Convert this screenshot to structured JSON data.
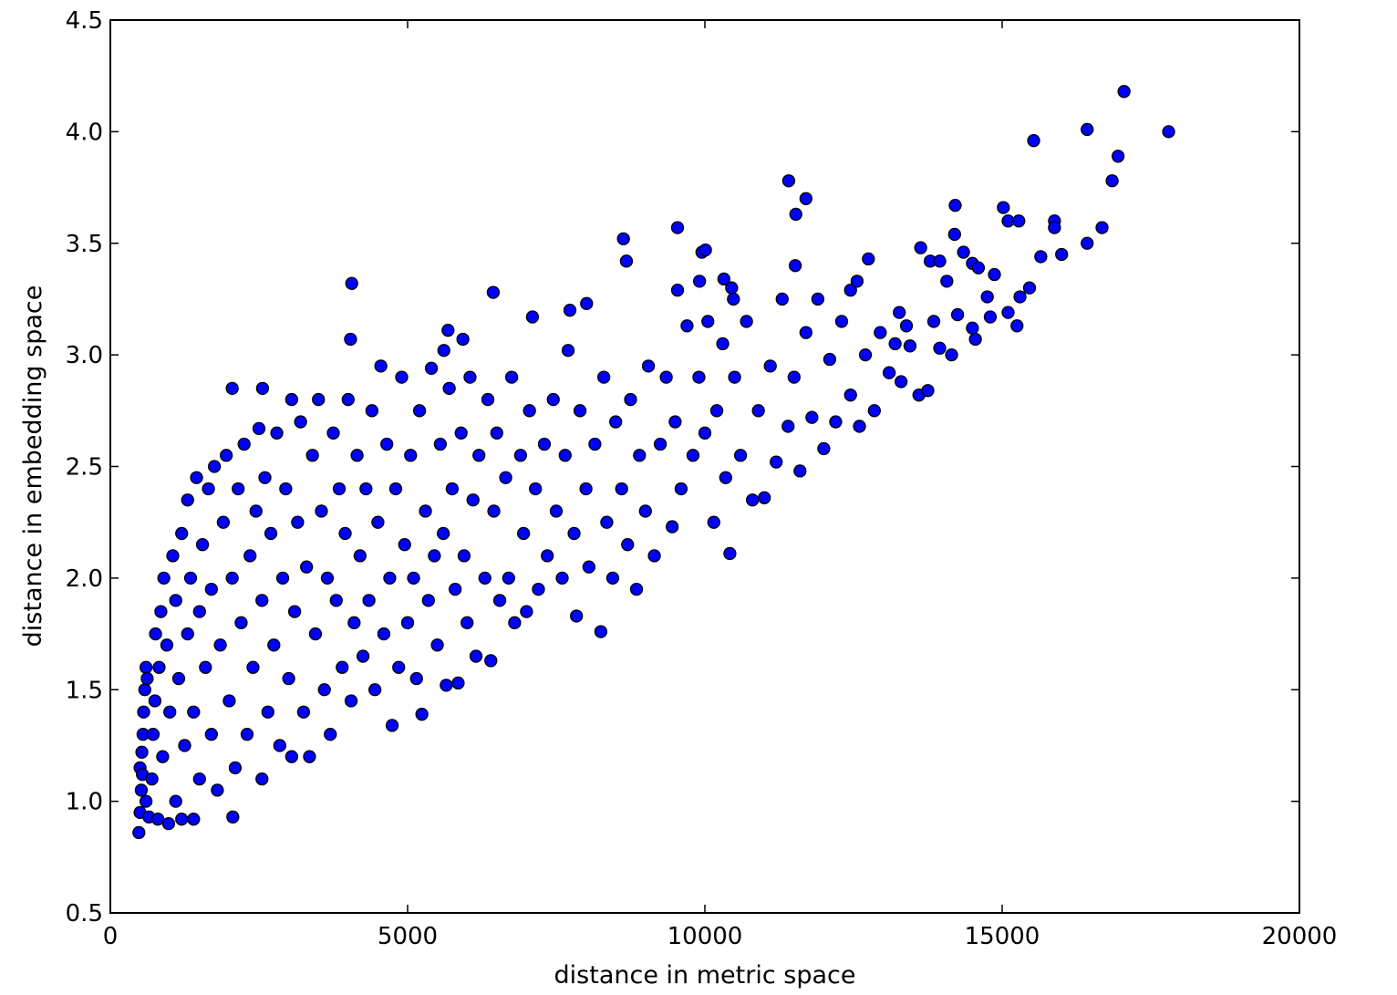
{
  "chart_data": {
    "type": "scatter",
    "title": "",
    "xlabel": "distance in metric space",
    "ylabel": "distance in embedding space",
    "xlim": [
      0,
      20000
    ],
    "ylim": [
      0.5,
      4.5
    ],
    "xticks": [
      "0",
      "5000",
      "10000",
      "15000",
      "20000"
    ],
    "yticks": [
      "0.5",
      "1.0",
      "1.5",
      "2.0",
      "2.5",
      "3.0",
      "3.5",
      "4.0",
      "4.5"
    ],
    "grid": false,
    "legend": "none",
    "marker_color": "#0000ff",
    "marker_edge_color": "#000000",
    "points": [
      [
        480,
        0.86
      ],
      [
        500,
        0.95
      ],
      [
        520,
        1.05
      ],
      [
        500,
        1.15
      ],
      [
        530,
        1.22
      ],
      [
        550,
        1.3
      ],
      [
        560,
        1.4
      ],
      [
        580,
        1.5
      ],
      [
        600,
        1.6
      ],
      [
        620,
        1.55
      ],
      [
        540,
        1.12
      ],
      [
        600,
        1.0
      ],
      [
        650,
        0.93
      ],
      [
        700,
        1.1
      ],
      [
        720,
        1.3
      ],
      [
        750,
        1.45
      ],
      [
        760,
        1.75
      ],
      [
        800,
        0.92
      ],
      [
        820,
        1.6
      ],
      [
        850,
        1.85
      ],
      [
        880,
        1.2
      ],
      [
        900,
        2.0
      ],
      [
        950,
        1.7
      ],
      [
        980,
        0.9
      ],
      [
        1000,
        1.4
      ],
      [
        1050,
        2.1
      ],
      [
        1100,
        1.0
      ],
      [
        1100,
        1.9
      ],
      [
        1150,
        1.55
      ],
      [
        1200,
        2.2
      ],
      [
        1200,
        0.92
      ],
      [
        1250,
        1.25
      ],
      [
        1300,
        2.35
      ],
      [
        1300,
        1.75
      ],
      [
        1350,
        2.0
      ],
      [
        1400,
        1.4
      ],
      [
        1400,
        0.92
      ],
      [
        1450,
        2.45
      ],
      [
        1500,
        1.1
      ],
      [
        1500,
        1.85
      ],
      [
        1550,
        2.15
      ],
      [
        1600,
        1.6
      ],
      [
        1650,
        2.4
      ],
      [
        1700,
        1.3
      ],
      [
        1700,
        1.95
      ],
      [
        1750,
        2.5
      ],
      [
        1800,
        1.05
      ],
      [
        1850,
        1.7
      ],
      [
        1900,
        2.25
      ],
      [
        1950,
        2.55
      ],
      [
        2000,
        1.45
      ],
      [
        2050,
        2.0
      ],
      [
        2060,
        0.93
      ],
      [
        2100,
        1.15
      ],
      [
        2150,
        2.4
      ],
      [
        2200,
        1.8
      ],
      [
        2250,
        2.6
      ],
      [
        2300,
        1.3
      ],
      [
        2350,
        2.1
      ],
      [
        2400,
        1.6
      ],
      [
        2450,
        2.3
      ],
      [
        2500,
        2.67
      ],
      [
        2550,
        1.1
      ],
      [
        2550,
        1.9
      ],
      [
        2600,
        2.45
      ],
      [
        2650,
        1.4
      ],
      [
        2700,
        2.2
      ],
      [
        2750,
        1.7
      ],
      [
        2800,
        2.65
      ],
      [
        2850,
        1.25
      ],
      [
        2900,
        2.0
      ],
      [
        2950,
        2.4
      ],
      [
        3000,
        1.55
      ],
      [
        3050,
        1.2
      ],
      [
        3050,
        2.8
      ],
      [
        3100,
        1.85
      ],
      [
        3150,
        2.25
      ],
      [
        3200,
        2.7
      ],
      [
        3250,
        1.4
      ],
      [
        3300,
        2.05
      ],
      [
        3350,
        1.2
      ],
      [
        3400,
        2.55
      ],
      [
        3450,
        1.75
      ],
      [
        3500,
        2.8
      ],
      [
        3550,
        2.3
      ],
      [
        3600,
        1.5
      ],
      [
        3650,
        2.0
      ],
      [
        3700,
        1.3
      ],
      [
        3750,
        2.65
      ],
      [
        3800,
        1.9
      ],
      [
        3850,
        2.4
      ],
      [
        3900,
        1.6
      ],
      [
        3950,
        2.2
      ],
      [
        4000,
        2.8
      ],
      [
        4050,
        1.45
      ],
      [
        4100,
        1.8
      ],
      [
        4150,
        2.55
      ],
      [
        4200,
        2.1
      ],
      [
        4250,
        1.65
      ],
      [
        4300,
        2.4
      ],
      [
        4350,
        1.9
      ],
      [
        4400,
        2.75
      ],
      [
        4450,
        1.5
      ],
      [
        4500,
        2.25
      ],
      [
        4550,
        2.95
      ],
      [
        4600,
        1.75
      ],
      [
        4650,
        2.6
      ],
      [
        4700,
        2.0
      ],
      [
        4740,
        1.34
      ],
      [
        4800,
        2.4
      ],
      [
        4850,
        1.6
      ],
      [
        4900,
        2.9
      ],
      [
        4950,
        2.15
      ],
      [
        5000,
        1.8
      ],
      [
        5050,
        2.55
      ],
      [
        5100,
        2.0
      ],
      [
        5150,
        1.55
      ],
      [
        5200,
        2.75
      ],
      [
        5240,
        1.39
      ],
      [
        5300,
        2.3
      ],
      [
        5350,
        1.9
      ],
      [
        5400,
        2.94
      ],
      [
        5450,
        2.1
      ],
      [
        5500,
        1.7
      ],
      [
        5550,
        2.6
      ],
      [
        5600,
        2.2
      ],
      [
        5650,
        1.52
      ],
      [
        5700,
        2.85
      ],
      [
        5750,
        2.4
      ],
      [
        5800,
        1.95
      ],
      [
        5850,
        1.53
      ],
      [
        5900,
        2.65
      ],
      [
        5950,
        2.1
      ],
      [
        6000,
        1.8
      ],
      [
        6050,
        2.9
      ],
      [
        6100,
        2.35
      ],
      [
        6150,
        1.65
      ],
      [
        6200,
        2.55
      ],
      [
        6300,
        2.0
      ],
      [
        6350,
        2.8
      ],
      [
        6400,
        1.63
      ],
      [
        6450,
        2.3
      ],
      [
        6500,
        2.65
      ],
      [
        6550,
        1.9
      ],
      [
        6650,
        2.45
      ],
      [
        6700,
        2.0
      ],
      [
        6750,
        2.9
      ],
      [
        6800,
        1.8
      ],
      [
        6900,
        2.55
      ],
      [
        6950,
        2.2
      ],
      [
        7000,
        1.85
      ],
      [
        7050,
        2.75
      ],
      [
        7150,
        2.4
      ],
      [
        7200,
        1.95
      ],
      [
        7300,
        2.6
      ],
      [
        7350,
        2.1
      ],
      [
        7450,
        2.8
      ],
      [
        7500,
        2.3
      ],
      [
        7600,
        2.0
      ],
      [
        7650,
        2.55
      ],
      [
        7700,
        3.02
      ],
      [
        7800,
        2.2
      ],
      [
        7840,
        1.83
      ],
      [
        7900,
        2.75
      ],
      [
        8000,
        2.4
      ],
      [
        8050,
        2.05
      ],
      [
        8150,
        2.6
      ],
      [
        8250,
        1.76
      ],
      [
        8300,
        2.9
      ],
      [
        8350,
        2.25
      ],
      [
        8450,
        2.0
      ],
      [
        8500,
        2.7
      ],
      [
        8600,
        2.4
      ],
      [
        8700,
        2.15
      ],
      [
        8750,
        2.8
      ],
      [
        8850,
        1.95
      ],
      [
        8900,
        2.55
      ],
      [
        9000,
        2.3
      ],
      [
        9050,
        2.95
      ],
      [
        9150,
        2.1
      ],
      [
        9250,
        2.6
      ],
      [
        9350,
        2.9
      ],
      [
        9450,
        2.23
      ],
      [
        9500,
        2.7
      ],
      [
        9600,
        2.4
      ],
      [
        9700,
        3.13
      ],
      [
        9800,
        2.55
      ],
      [
        9900,
        2.9
      ],
      [
        10000,
        2.65
      ],
      [
        10050,
        3.15
      ],
      [
        10150,
        2.25
      ],
      [
        10200,
        2.75
      ],
      [
        10300,
        3.05
      ],
      [
        10350,
        2.45
      ],
      [
        10420,
        2.11
      ],
      [
        10500,
        2.9
      ],
      [
        10600,
        2.55
      ],
      [
        10700,
        3.15
      ],
      [
        10800,
        2.35
      ],
      [
        10900,
        2.75
      ],
      [
        11000,
        2.36
      ],
      [
        11100,
        2.95
      ],
      [
        11200,
        2.52
      ],
      [
        11300,
        3.25
      ],
      [
        11400,
        2.68
      ],
      [
        11500,
        2.9
      ],
      [
        11600,
        2.48
      ],
      [
        11700,
        3.1
      ],
      [
        11800,
        2.72
      ],
      [
        11900,
        3.25
      ],
      [
        12000,
        2.58
      ],
      [
        12100,
        2.98
      ],
      [
        12200,
        2.7
      ],
      [
        12300,
        3.15
      ],
      [
        12450,
        2.82
      ],
      [
        12600,
        2.68
      ],
      [
        12700,
        3.0
      ],
      [
        12850,
        2.75
      ],
      [
        12950,
        3.1
      ],
      [
        13100,
        2.92
      ],
      [
        13200,
        3.05
      ],
      [
        13300,
        2.88
      ],
      [
        13450,
        3.04
      ],
      [
        13600,
        2.82
      ],
      [
        13750,
        2.84
      ],
      [
        13850,
        3.15
      ],
      [
        13950,
        3.03
      ],
      [
        14150,
        3.0
      ],
      [
        14250,
        3.18
      ],
      [
        14500,
        3.12
      ],
      [
        14550,
        3.07
      ],
      [
        14800,
        3.17
      ],
      [
        15100,
        3.19
      ],
      [
        15250,
        3.13
      ],
      [
        2050,
        2.85
      ],
      [
        2560,
        2.85
      ],
      [
        4060,
        3.32
      ],
      [
        4040,
        3.07
      ],
      [
        5680,
        3.11
      ],
      [
        5610,
        3.02
      ],
      [
        5930,
        3.07
      ],
      [
        6440,
        3.28
      ],
      [
        7100,
        3.17
      ],
      [
        7730,
        3.2
      ],
      [
        8010,
        3.23
      ],
      [
        8630,
        3.52
      ],
      [
        8680,
        3.42
      ],
      [
        9540,
        3.57
      ],
      [
        9950,
        3.46
      ],
      [
        10010,
        3.47
      ],
      [
        9910,
        3.33
      ],
      [
        9540,
        3.29
      ],
      [
        10320,
        3.34
      ],
      [
        10450,
        3.3
      ],
      [
        10480,
        3.25
      ],
      [
        11410,
        3.78
      ],
      [
        11530,
        3.63
      ],
      [
        11700,
        3.7
      ],
      [
        11520,
        3.4
      ],
      [
        12450,
        3.29
      ],
      [
        12560,
        3.33
      ],
      [
        12750,
        3.43
      ],
      [
        13270,
        3.19
      ],
      [
        13390,
        3.13
      ],
      [
        13630,
        3.48
      ],
      [
        13790,
        3.42
      ],
      [
        13950,
        3.42
      ],
      [
        14070,
        3.33
      ],
      [
        14200,
        3.54
      ],
      [
        14210,
        3.67
      ],
      [
        14350,
        3.46
      ],
      [
        14500,
        3.41
      ],
      [
        14600,
        3.39
      ],
      [
        14750,
        3.26
      ],
      [
        14870,
        3.36
      ],
      [
        15020,
        3.66
      ],
      [
        15100,
        3.6
      ],
      [
        15280,
        3.6
      ],
      [
        15300,
        3.26
      ],
      [
        15460,
        3.3
      ],
      [
        15530,
        3.96
      ],
      [
        15650,
        3.44
      ],
      [
        15880,
        3.6
      ],
      [
        15880,
        3.57
      ],
      [
        16000,
        3.45
      ],
      [
        16430,
        3.5
      ],
      [
        16430,
        4.01
      ],
      [
        16680,
        3.57
      ],
      [
        16850,
        3.78
      ],
      [
        16950,
        3.89
      ],
      [
        17050,
        4.18
      ],
      [
        17800,
        4.0
      ]
    ]
  }
}
